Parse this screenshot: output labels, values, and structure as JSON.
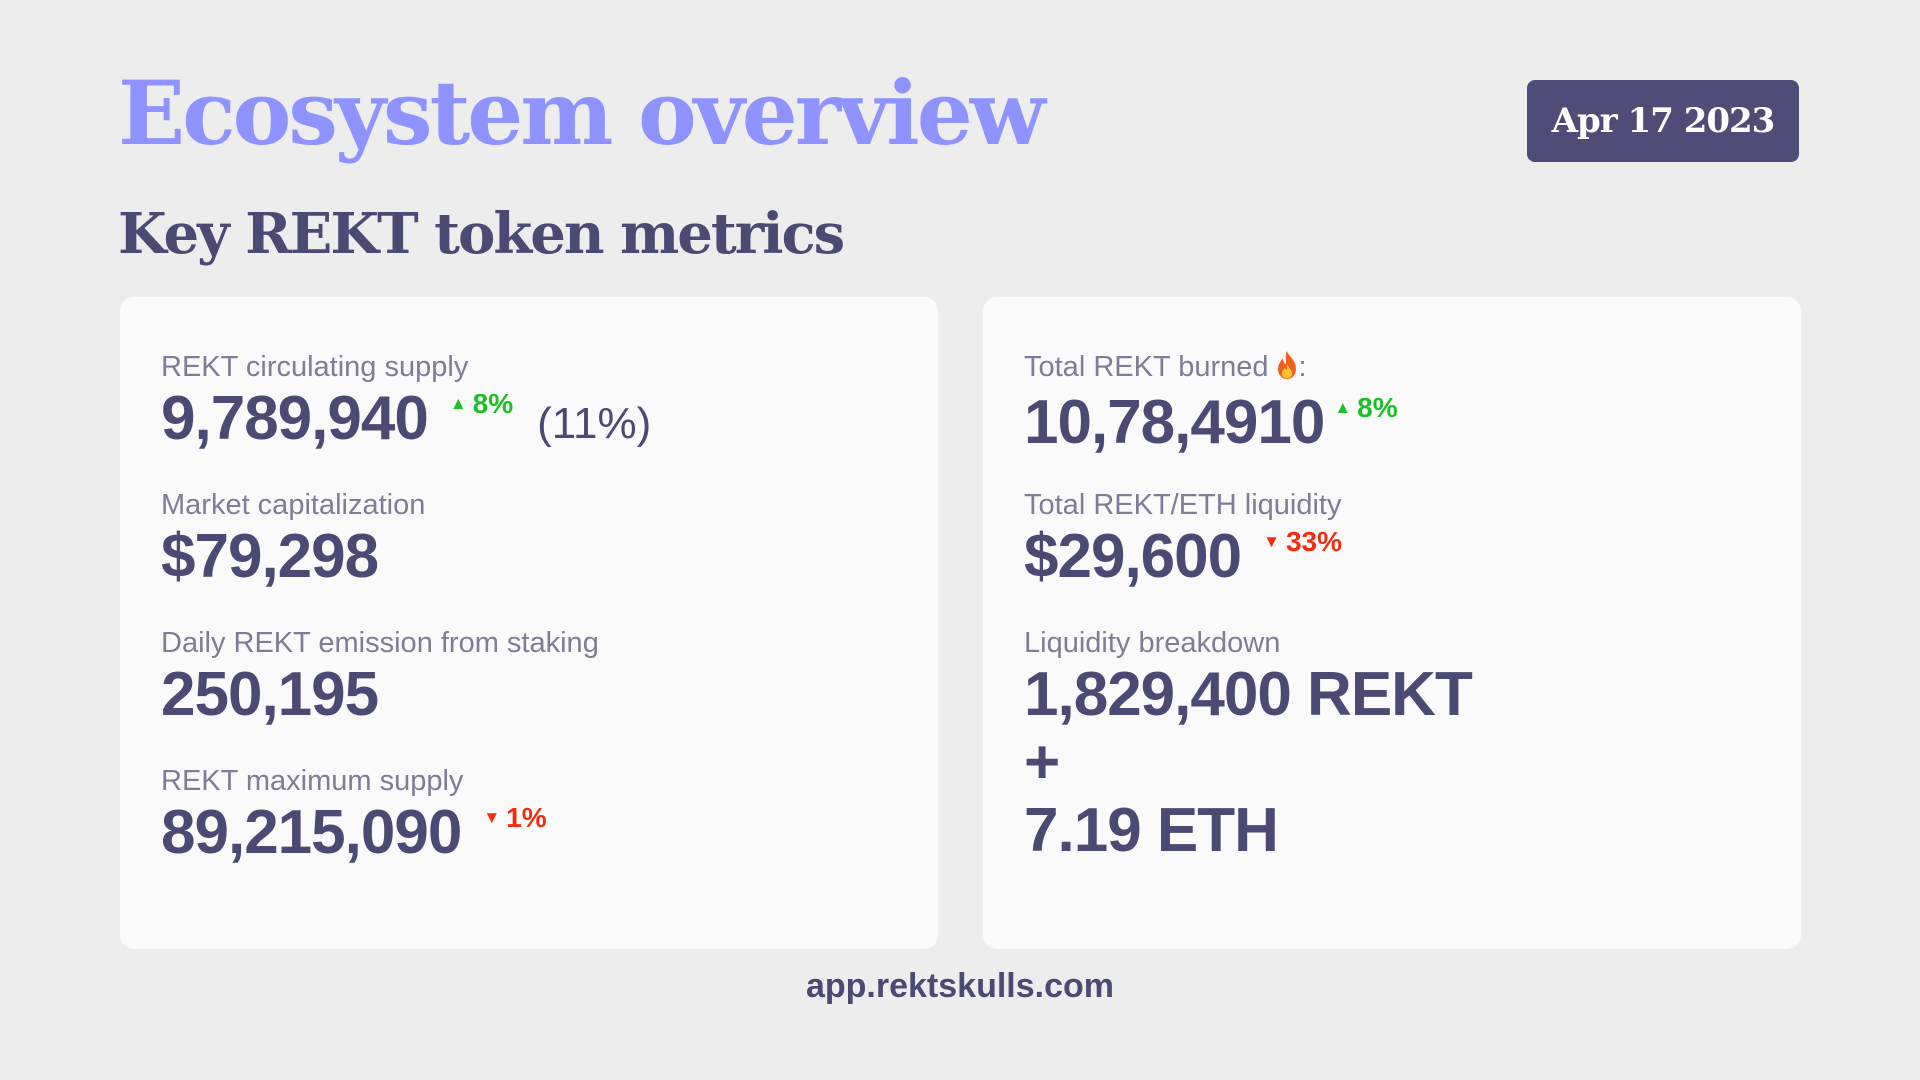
{
  "header": {
    "title": "Ecosystem overview",
    "date": "Apr 17 2023",
    "subtitle": "Key REKT token metrics"
  },
  "metrics_left": [
    {
      "label": "REKT circulating supply",
      "value": "9,789,940",
      "change": "8%",
      "direction": "up",
      "extra": "(11%)"
    },
    {
      "label": "Market capitalization",
      "value": "$79,298"
    },
    {
      "label": "Daily REKT emission from staking",
      "value": "250,195"
    },
    {
      "label": "REKT maximum supply",
      "value": "89,215,090",
      "change": "1%",
      "direction": "down"
    }
  ],
  "metrics_right": [
    {
      "label": "Total REKT burned",
      "label_suffix": ":",
      "icon": "fire-icon",
      "value": "10,78,4910",
      "change": "8%",
      "direction": "up"
    },
    {
      "label": "Total REKT/ETH liquidity",
      "value": "$29,600",
      "change": "33%",
      "direction": "down"
    },
    {
      "label": "Liquidity breakdown",
      "lines": [
        "1,829,400 REKT",
        "+",
        "7.19 ETH"
      ]
    }
  ],
  "footer": {
    "url": "app.rektskulls.com"
  },
  "colors": {
    "background": "#ededed",
    "card": "#fafafa",
    "title": "#8e93ff",
    "text_dark": "#4a4a74",
    "label": "#7d7d96",
    "badge": "#504c78",
    "up": "#1dbf26",
    "down": "#f02d10"
  },
  "arrows": {
    "up": "▲",
    "down": "▼"
  }
}
